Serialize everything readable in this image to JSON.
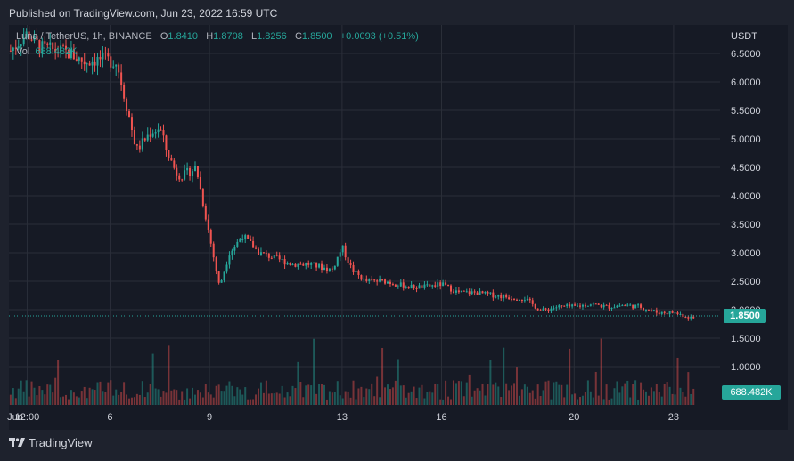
{
  "header": {
    "published": "Published on TradingView.com, Jun 23, 2022 16:59 UTC"
  },
  "legend": {
    "symbol": "Luna / TetherUS, 1h, BINANCE",
    "o_label": "O",
    "o_value": "1.8410",
    "h_label": "H",
    "h_value": "1.8708",
    "l_label": "L",
    "l_value": "1.8256",
    "c_label": "C",
    "c_value": "1.8500",
    "change": "+0.0093 (+0.51%)",
    "vol_label": "Vol",
    "vol_value": "688.482K"
  },
  "axis": {
    "currency": "USDT"
  },
  "price_tag": "1.8500",
  "volume_tag": "688.482K",
  "footer": {
    "brand": "TradingView",
    "logo_icon": "tradingview-logo-icon"
  },
  "colors": {
    "up": "#26a69a",
    "down": "#ef5350",
    "background": "#161a25",
    "grid": "#2a2e39"
  },
  "chart_data": {
    "type": "candlestick",
    "symbol": "Luna / TetherUS",
    "interval": "1h",
    "exchange": "BINANCE",
    "y_ticks": [
      "6.5000",
      "6.0000",
      "5.5000",
      "5.0000",
      "4.5000",
      "4.0000",
      "3.5000",
      "3.0000",
      "2.5000",
      "2.0000",
      "1.5000",
      "1.0000"
    ],
    "x_ticks": [
      "Jun",
      "12:00",
      "6",
      "9",
      "13",
      "16",
      "20",
      "23"
    ],
    "last_price": 1.85,
    "series": [
      {
        "name": "price",
        "anchors_day": [
          3.0,
          3.5,
          3.9,
          4.4,
          4.8,
          5.2,
          5.7,
          6.2,
          6.8,
          7.2,
          7.5,
          7.7,
          8.0,
          8.2,
          8.6,
          9.0,
          9.3,
          9.6,
          10.0,
          10.5,
          11.0,
          11.5,
          12.0,
          12.7,
          13.0,
          13.3,
          13.7,
          14.3,
          15.0,
          15.5,
          16.0,
          16.5,
          17.0,
          18.0,
          18.5,
          19.0,
          19.5,
          20.0,
          20.5,
          21.0,
          21.5,
          22.0,
          22.5,
          23.0,
          23.6
        ],
        "anchors_price": [
          6.55,
          6.85,
          6.6,
          6.55,
          6.5,
          6.35,
          6.4,
          6.35,
          4.8,
          5.1,
          5.2,
          4.8,
          4.4,
          4.35,
          4.5,
          3.3,
          2.4,
          3.0,
          3.3,
          3.0,
          2.9,
          2.8,
          2.8,
          2.7,
          3.1,
          2.7,
          2.5,
          2.5,
          2.4,
          2.4,
          2.45,
          2.3,
          2.3,
          2.22,
          2.2,
          1.98,
          2.05,
          2.05,
          2.1,
          2.05,
          2.08,
          2.05,
          1.95,
          1.95,
          1.85
        ]
      }
    ]
  }
}
